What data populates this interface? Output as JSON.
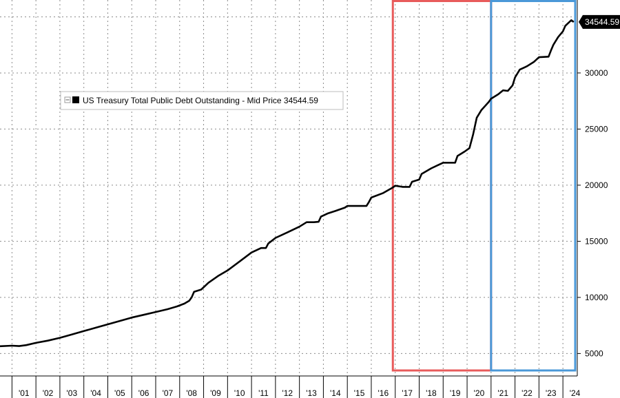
{
  "chart_data": {
    "type": "line",
    "title": "",
    "xlabel": "",
    "ylabel": "",
    "x_ticks": [
      "'01",
      "'02",
      "'03",
      "'04",
      "'05",
      "'06",
      "'07",
      "'08",
      "'09",
      "'10",
      "'11",
      "'12",
      "'13",
      "'14",
      "'15",
      "'16",
      "'17",
      "'18",
      "'19",
      "'20",
      "'21",
      "'22",
      "'23",
      "'24"
    ],
    "y_ticks": [
      5000,
      10000,
      15000,
      20000,
      25000,
      30000
    ],
    "xlim": [
      2000.5,
      2024.6
    ],
    "ylim": [
      3000,
      36500
    ],
    "grid": true,
    "legend": {
      "position": "top-left",
      "entries": [
        "US Treasury Total Public Debt Outstanding - Mid Price 34544.59"
      ]
    },
    "last_value_label": "34544.59",
    "series": [
      {
        "name": "US Treasury Total Public Debt Outstanding - Mid Price 34544.59",
        "color": "#000000",
        "points": [
          [
            2000.5,
            5650
          ],
          [
            2001.0,
            5700
          ],
          [
            2001.3,
            5660
          ],
          [
            2001.6,
            5750
          ],
          [
            2002.0,
            5950
          ],
          [
            2002.5,
            6150
          ],
          [
            2003.0,
            6400
          ],
          [
            2003.5,
            6700
          ],
          [
            2004.0,
            7000
          ],
          [
            2004.5,
            7300
          ],
          [
            2005.0,
            7600
          ],
          [
            2005.5,
            7900
          ],
          [
            2006.0,
            8200
          ],
          [
            2006.5,
            8450
          ],
          [
            2007.0,
            8700
          ],
          [
            2007.5,
            8950
          ],
          [
            2007.9,
            9200
          ],
          [
            2008.2,
            9450
          ],
          [
            2008.4,
            9700
          ],
          [
            2008.5,
            10000
          ],
          [
            2008.6,
            10500
          ],
          [
            2008.9,
            10700
          ],
          [
            2009.2,
            11300
          ],
          [
            2009.6,
            11900
          ],
          [
            2010.0,
            12400
          ],
          [
            2010.5,
            13200
          ],
          [
            2011.0,
            14000
          ],
          [
            2011.4,
            14400
          ],
          [
            2011.6,
            14400
          ],
          [
            2011.7,
            14800
          ],
          [
            2012.0,
            15300
          ],
          [
            2012.5,
            15800
          ],
          [
            2013.0,
            16300
          ],
          [
            2013.3,
            16700
          ],
          [
            2013.6,
            16700
          ],
          [
            2013.8,
            16740
          ],
          [
            2013.9,
            17200
          ],
          [
            2014.2,
            17500
          ],
          [
            2014.5,
            17700
          ],
          [
            2014.9,
            18000
          ],
          [
            2015.0,
            18150
          ],
          [
            2015.4,
            18150
          ],
          [
            2015.8,
            18150
          ],
          [
            2015.9,
            18500
          ],
          [
            2016.0,
            18900
          ],
          [
            2016.5,
            19300
          ],
          [
            2016.9,
            19800
          ],
          [
            2017.0,
            19950
          ],
          [
            2017.3,
            19850
          ],
          [
            2017.6,
            19850
          ],
          [
            2017.7,
            20300
          ],
          [
            2018.0,
            20500
          ],
          [
            2018.1,
            21000
          ],
          [
            2018.5,
            21500
          ],
          [
            2019.0,
            22000
          ],
          [
            2019.5,
            22000
          ],
          [
            2019.6,
            22600
          ],
          [
            2019.9,
            23000
          ],
          [
            2020.1,
            23300
          ],
          [
            2020.25,
            24500
          ],
          [
            2020.4,
            26000
          ],
          [
            2020.6,
            26700
          ],
          [
            2020.9,
            27400
          ],
          [
            2021.0,
            27700
          ],
          [
            2021.3,
            28100
          ],
          [
            2021.5,
            28450
          ],
          [
            2021.7,
            28400
          ],
          [
            2021.9,
            28900
          ],
          [
            2022.0,
            29600
          ],
          [
            2022.2,
            30300
          ],
          [
            2022.5,
            30600
          ],
          [
            2022.8,
            31000
          ],
          [
            2023.0,
            31400
          ],
          [
            2023.4,
            31450
          ],
          [
            2023.5,
            32000
          ],
          [
            2023.6,
            32500
          ],
          [
            2023.8,
            33200
          ],
          [
            2024.0,
            33700
          ],
          [
            2024.1,
            34200
          ],
          [
            2024.2,
            34400
          ],
          [
            2024.35,
            34700
          ],
          [
            2024.45,
            34544.59
          ]
        ]
      }
    ],
    "highlight_boxes": [
      {
        "name": "red",
        "color": "#e85b5b",
        "x_range": [
          2016.9,
          2021.0
        ]
      },
      {
        "name": "blue",
        "color": "#4a98d8",
        "x_range": [
          2021.0,
          2024.9
        ]
      }
    ]
  }
}
